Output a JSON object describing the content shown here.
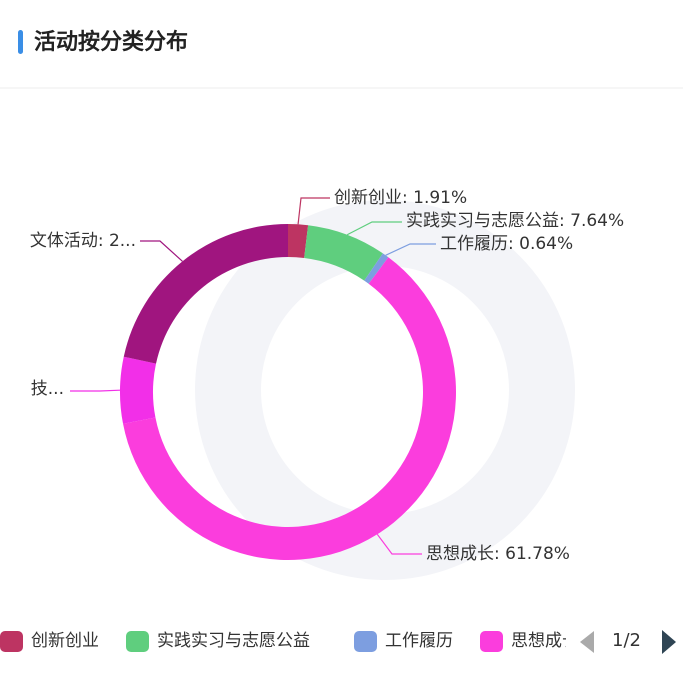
{
  "header": {
    "title": "活动按分类分布"
  },
  "chart_data": {
    "type": "donut",
    "categories": [
      "创新创业",
      "实践实习与志愿公益",
      "工作履历",
      "思想成长",
      null,
      "文体活动"
    ],
    "values": [
      1.91,
      7.64,
      0.64,
      61.78,
      6.4,
      21.63
    ],
    "value_labels": [
      "创新创业: 1.91%",
      "实践实习与志愿公益: 7.64%",
      "工作履历: 0.64%",
      "思想成长: 61.78%",
      "技...",
      "文体活动: 2..."
    ],
    "colors": [
      "#bd3462",
      "#5fce7e",
      "#7d9ee0",
      "#fb3ddd",
      "#f22fe8",
      "#a0157f"
    ],
    "legend_page": "1/2"
  }
}
